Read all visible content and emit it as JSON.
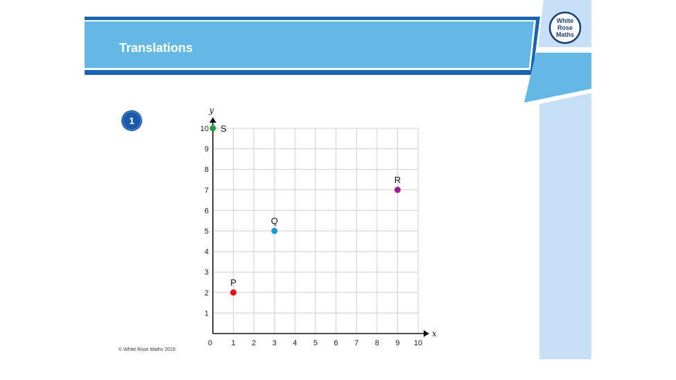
{
  "header": {
    "title": "Translations"
  },
  "logo": {
    "line1": "White",
    "line2": "Rose",
    "line3": "Maths"
  },
  "question": {
    "number": "1"
  },
  "footer": {
    "copyright": "© White Rose Maths 2019"
  },
  "colors": {
    "banner_light": "#64b8e6",
    "banner_dark": "#1b63b3",
    "side_panel": "#c7e0f5",
    "badge": "#1b5aa8"
  },
  "chart_data": {
    "type": "scatter",
    "xlabel": "x",
    "ylabel": "y",
    "xlim": [
      0,
      10
    ],
    "ylim": [
      0,
      10
    ],
    "grid": true,
    "origin_label": "0",
    "x_ticks": [
      "1",
      "2",
      "3",
      "4",
      "5",
      "6",
      "7",
      "8",
      "9",
      "10"
    ],
    "y_ticks": [
      "1",
      "2",
      "3",
      "4",
      "5",
      "6",
      "7",
      "8",
      "9",
      "10"
    ],
    "points": [
      {
        "label": "P",
        "x": 1,
        "y": 2,
        "color": "#e3141b"
      },
      {
        "label": "Q",
        "x": 3,
        "y": 5,
        "color": "#1a96d4"
      },
      {
        "label": "R",
        "x": 9,
        "y": 7,
        "color": "#9a1f8e"
      },
      {
        "label": "S",
        "x": 0,
        "y": 10,
        "color": "#1e9c3f"
      }
    ]
  }
}
